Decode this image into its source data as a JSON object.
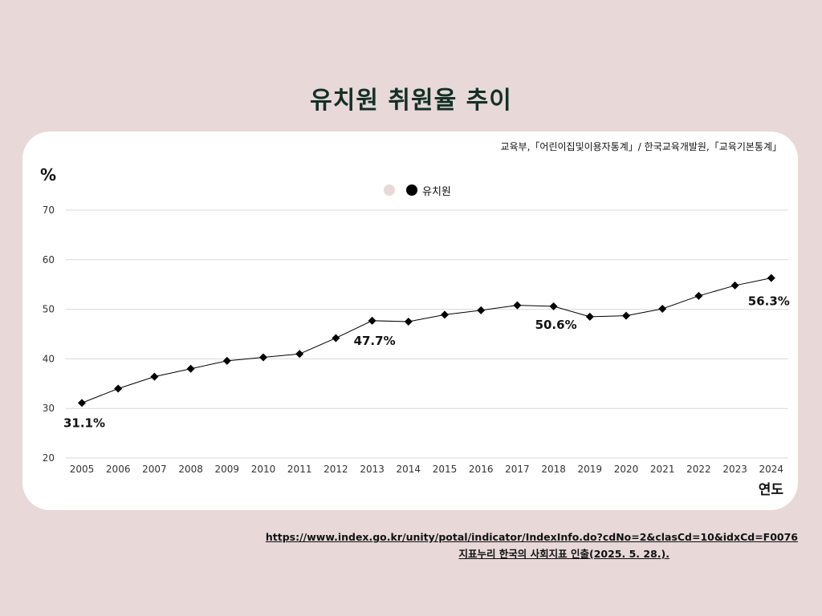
{
  "title": "유치원 취원율 추이",
  "source_top": "교육부,「어린이집및이용자통계」/ 한국교육개발원,「교육기본통계」",
  "footer": {
    "link": "https://www.index.go.kr/unity/potal/indicator/IndexInfo.do?cdNo=2&clasCd=10&idxCd=F0076",
    "note": "지표누리 한국의 사회지표 인출(2025. 5. 28.)."
  },
  "colors": {
    "background": "#e8d8d8",
    "line": "#000000",
    "legend_blank": "#e8d8d8"
  },
  "chart_data": {
    "type": "line",
    "title": "유치원 취원율 추이",
    "xlabel": "연도",
    "ylabel": "%",
    "ylim": [
      20,
      70
    ],
    "yticks": [
      "20",
      "30",
      "40",
      "50",
      "60",
      "70"
    ],
    "grid": true,
    "legend_position": "top-center",
    "categories": [
      "2005",
      "2006",
      "2007",
      "2008",
      "2009",
      "2010",
      "2011",
      "2012",
      "2013",
      "2014",
      "2015",
      "2016",
      "2017",
      "2018",
      "2019",
      "2020",
      "2021",
      "2022",
      "2023",
      "2024"
    ],
    "series": [
      {
        "name": "유치원",
        "values": [
          31.1,
          34.0,
          36.4,
          38.0,
          39.6,
          40.3,
          41.0,
          44.2,
          47.7,
          47.5,
          48.9,
          49.8,
          50.8,
          50.6,
          48.5,
          48.7,
          50.1,
          52.7,
          54.8,
          56.3
        ]
      }
    ],
    "legend": [
      "",
      "유치원"
    ],
    "annotations": [
      {
        "category": "2005",
        "value": 31.1,
        "text": "31.1%"
      },
      {
        "category": "2013",
        "value": 47.7,
        "text": "47.7%"
      },
      {
        "category": "2018",
        "value": 50.6,
        "text": "50.6%"
      },
      {
        "category": "2024",
        "value": 56.3,
        "text": "56.3%"
      }
    ]
  }
}
